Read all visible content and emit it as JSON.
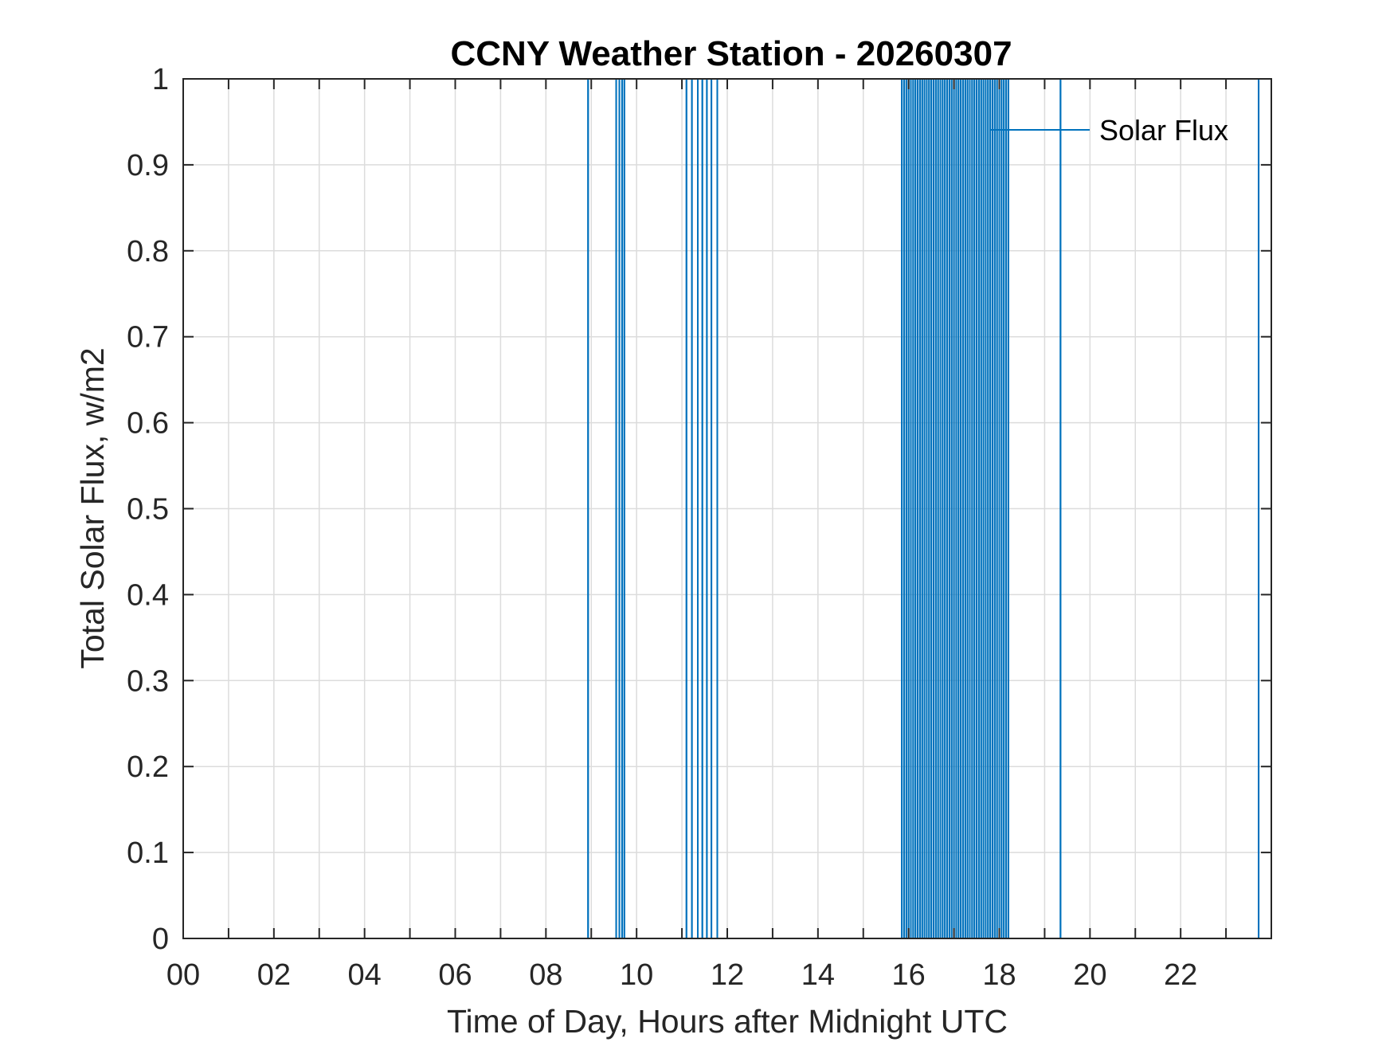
{
  "chart_data": {
    "type": "line",
    "title": "CCNY Weather Station - 20260307",
    "xlabel": "Time of Day, Hours after Midnight UTC",
    "ylabel": "Total Solar Flux, w/m2",
    "xlim": [
      0,
      24
    ],
    "ylim": [
      0,
      1
    ],
    "x_ticks": [
      0,
      2,
      4,
      6,
      8,
      10,
      12,
      14,
      16,
      18,
      20,
      22
    ],
    "x_tick_labels": [
      "00",
      "02",
      "04",
      "06",
      "08",
      "10",
      "12",
      "14",
      "16",
      "18",
      "20",
      "22"
    ],
    "y_ticks": [
      0,
      0.1,
      0.2,
      0.3,
      0.4,
      0.5,
      0.6,
      0.7,
      0.8,
      0.9,
      1
    ],
    "y_tick_labels": [
      "0",
      "0.1",
      "0.2",
      "0.3",
      "0.4",
      "0.5",
      "0.6",
      "0.7",
      "0.8",
      "0.9",
      "1"
    ],
    "grid": true,
    "legend_position": "top-right",
    "series": [
      {
        "name": "Solar Flux",
        "color": "#0072BD",
        "spike_times": [
          8.93,
          9.55,
          9.62,
          9.68,
          9.73,
          11.1,
          11.22,
          11.35,
          11.45,
          11.55,
          11.65,
          11.78,
          15.85,
          15.9,
          15.95,
          16.0,
          16.05,
          16.1,
          16.15,
          16.2,
          16.25,
          16.3,
          16.35,
          16.4,
          16.45,
          16.5,
          16.55,
          16.6,
          16.65,
          16.7,
          16.75,
          16.8,
          16.85,
          16.9,
          16.95,
          17.0,
          17.05,
          17.1,
          17.15,
          17.2,
          17.25,
          17.3,
          17.35,
          17.4,
          17.45,
          17.5,
          17.55,
          17.6,
          17.65,
          17.7,
          17.75,
          17.8,
          17.85,
          17.9,
          17.95,
          18.0,
          18.05,
          18.1,
          18.15,
          18.2,
          19.35,
          23.72
        ],
        "spike_value": 1,
        "base_value": 0
      }
    ]
  }
}
